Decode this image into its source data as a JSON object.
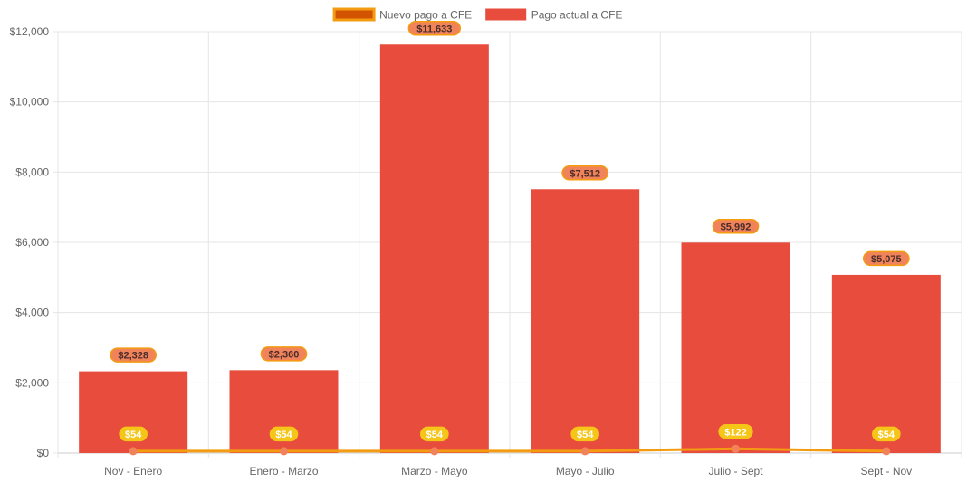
{
  "chart_data": {
    "type": "bar",
    "categories": [
      "Nov - Enero",
      "Enero - Marzo",
      "Marzo - Mayo",
      "Mayo - Julio",
      "Julio - Sept",
      "Sept - Nov"
    ],
    "series": [
      {
        "name": "Nuevo pago a CFE",
        "render": "line",
        "values": [
          54,
          54,
          54,
          54,
          122,
          54
        ],
        "labels": [
          "$54",
          "$54",
          "$54",
          "$54",
          "$122",
          "$54"
        ]
      },
      {
        "name": "Pago actual a CFE",
        "render": "bar",
        "values": [
          2328,
          2360,
          11633,
          7512,
          5992,
          5075
        ],
        "labels": [
          "$2,328",
          "$2,360",
          "$11,633",
          "$7,512",
          "$5,992",
          "$5,075"
        ]
      }
    ],
    "y_ticks": [
      "$0",
      "$2,000",
      "$4,000",
      "$6,000",
      "$8,000",
      "$10,000",
      "$12,000"
    ],
    "ylim": [
      0,
      12000
    ],
    "grid": true,
    "legend_position": "top-center"
  },
  "colors": {
    "bar": "#e74c3c",
    "line": "#f39c12",
    "line_point": "#f1835b",
    "legend_line_fill": "#d35400",
    "legend_line_border": "#f39c12",
    "bar_label_bg": "#f1835b",
    "bar_label_border": "#f39c12",
    "bar_label_text": "#4a2c2a",
    "line_label_bg": "#f5c518",
    "line_label_text": "#ffffff",
    "grid": "#e5e5e5",
    "axis_text": "#666666"
  }
}
